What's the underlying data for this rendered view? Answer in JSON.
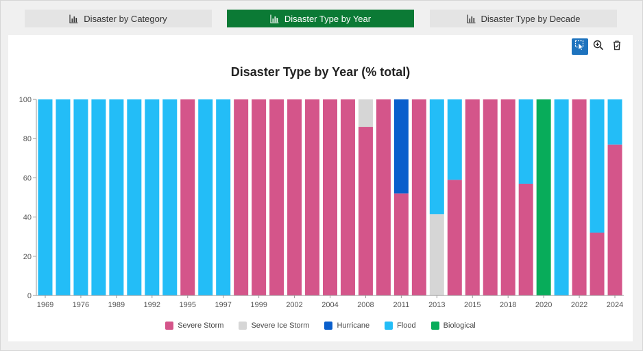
{
  "tabs": [
    {
      "label": "Disaster by Category",
      "active": false
    },
    {
      "label": "Disaster Type by Year",
      "active": true
    },
    {
      "label": "Disaster Type by Decade",
      "active": false
    }
  ],
  "toolbar": {
    "icons": [
      "selection-icon",
      "zoom-in-icon",
      "clear-selection-icon"
    ]
  },
  "colors": {
    "active_tab": "#0b7a35",
    "severe_storm": "#d4558a",
    "severe_ice_storm": "#d6d6d6",
    "hurricane": "#0a5fcc",
    "flood": "#23bdf7",
    "biological": "#08ac5a"
  },
  "chart_data": {
    "type": "bar",
    "stacked": true,
    "title": "Disaster Type by Year (% total)",
    "xlabel": "",
    "ylabel": "",
    "ylim": [
      0,
      100
    ],
    "yticks": [
      0,
      20,
      40,
      60,
      80,
      100
    ],
    "grid": false,
    "legend_position": "bottom",
    "categories": [
      "1969",
      "1973",
      "1976",
      "1979",
      "1989",
      "1990",
      "1992",
      "1993",
      "1995",
      "1996",
      "1997",
      "1998",
      "1999",
      "2000",
      "2002",
      "2003",
      "2004",
      "2006",
      "2008",
      "2010",
      "2011",
      "2012",
      "2013",
      "2014",
      "2015",
      "2016",
      "2018",
      "2019",
      "2020",
      "2021",
      "2022",
      "2023",
      "2024"
    ],
    "tick_labels": [
      "1969",
      "1976",
      "1989",
      "1992",
      "1995",
      "1997",
      "1999",
      "2002",
      "2004",
      "2008",
      "2011",
      "2013",
      "2015",
      "2018",
      "2020",
      "2022",
      "2024"
    ],
    "series": [
      {
        "name": "Severe Storm",
        "color": "#d4558a",
        "values": [
          0,
          0,
          0,
          0,
          0,
          0,
          0,
          0,
          100,
          0,
          0,
          100,
          100,
          100,
          100,
          100,
          100,
          100,
          86,
          100,
          52,
          100,
          0,
          59,
          100,
          100,
          100,
          57,
          0,
          0,
          100,
          32,
          77
        ]
      },
      {
        "name": "Severe Ice Storm",
        "color": "#d6d6d6",
        "values": [
          0,
          0,
          0,
          0,
          0,
          0,
          0,
          0,
          0,
          0,
          0,
          0,
          0,
          0,
          0,
          0,
          0,
          0,
          14,
          0,
          0,
          0,
          41.5,
          0,
          0,
          0,
          0,
          0,
          0,
          0,
          0,
          0,
          0
        ]
      },
      {
        "name": "Hurricane",
        "color": "#0a5fcc",
        "values": [
          0,
          0,
          0,
          0,
          0,
          0,
          0,
          0,
          0,
          0,
          0,
          0,
          0,
          0,
          0,
          0,
          0,
          0,
          0,
          0,
          48,
          0,
          0,
          0,
          0,
          0,
          0,
          0,
          0,
          0,
          0,
          0,
          0
        ]
      },
      {
        "name": "Flood",
        "color": "#23bdf7",
        "values": [
          100,
          100,
          100,
          100,
          100,
          100,
          100,
          100,
          0,
          100,
          100,
          0,
          0,
          0,
          0,
          0,
          0,
          0,
          0,
          0,
          0,
          0,
          58.5,
          41,
          0,
          0,
          0,
          43,
          0,
          100,
          0,
          68,
          23
        ]
      },
      {
        "name": "Biological",
        "color": "#08ac5a",
        "values": [
          0,
          0,
          0,
          0,
          0,
          0,
          0,
          0,
          0,
          0,
          0,
          0,
          0,
          0,
          0,
          0,
          0,
          0,
          0,
          0,
          0,
          0,
          0,
          0,
          0,
          0,
          0,
          0,
          100,
          0,
          0,
          0,
          0
        ]
      }
    ]
  }
}
